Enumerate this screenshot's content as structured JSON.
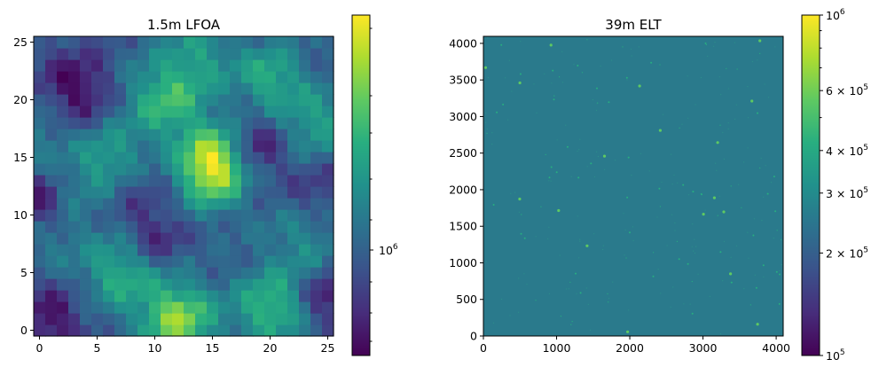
{
  "chart_data": [
    {
      "type": "heatmap",
      "title": "1.5m LFOA",
      "xlim": [
        0,
        25
      ],
      "ylim": [
        0,
        25
      ],
      "xticks": [
        "0",
        "5",
        "10",
        "15",
        "20",
        "25"
      ],
      "yticks": [
        "0",
        "5",
        "10",
        "15",
        "20",
        "25"
      ],
      "colormap": "viridis",
      "colorbar": {
        "scale": "log",
        "ticks": [
          {
            "label": "10",
            "exp": "6"
          }
        ]
      },
      "grid": false
    },
    {
      "type": "heatmap",
      "title": "39m ELT",
      "xlim": [
        0,
        4096
      ],
      "ylim": [
        0,
        4096
      ],
      "xticks": [
        "0",
        "1000",
        "2000",
        "3000",
        "4000"
      ],
      "yticks": [
        "0",
        "500",
        "1000",
        "1500",
        "2000",
        "2500",
        "3000",
        "3500",
        "4000"
      ],
      "colormap": "viridis",
      "background_color": "#2a7a8c",
      "colorbar": {
        "scale": "log",
        "range": [
          100000,
          1000000
        ],
        "ticks": [
          {
            "value": 100000,
            "label": "10",
            "exp": "5"
          },
          {
            "value": 200000,
            "label": "2 × 10",
            "exp": "5"
          },
          {
            "value": 300000,
            "label": "3 × 10",
            "exp": "5"
          },
          {
            "value": 400000,
            "label": "4 × 10",
            "exp": "5"
          },
          {
            "value": 600000,
            "label": "6 × 10",
            "exp": "5"
          },
          {
            "value": 1000000,
            "label": "10",
            "exp": "6"
          }
        ]
      },
      "grid": false
    }
  ]
}
